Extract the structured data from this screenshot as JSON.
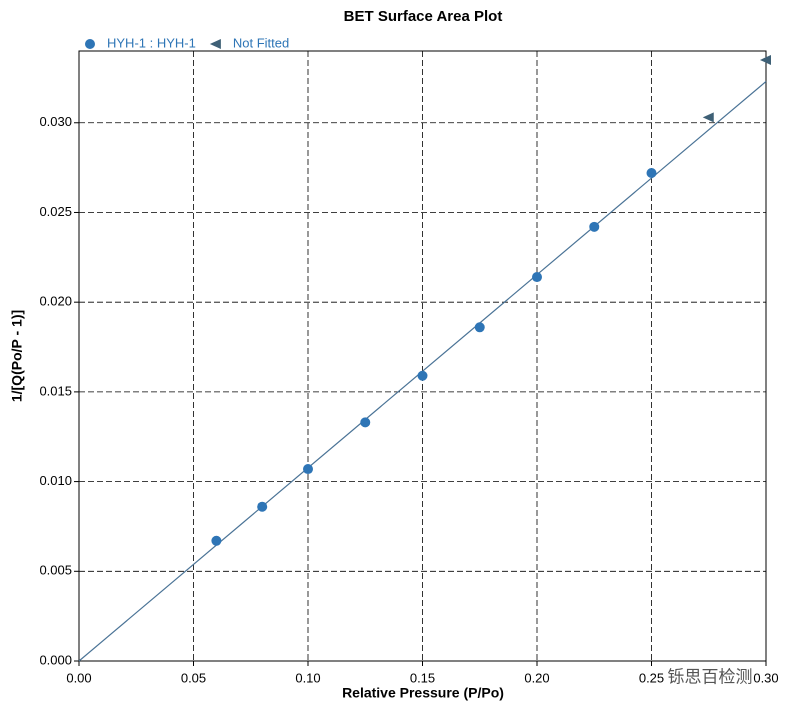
{
  "chart_data": {
    "type": "scatter",
    "title": "BET Surface Area Plot",
    "x_label": "Relative Pressure (P/Po)",
    "y_label": "1/[Q(Po/P - 1)]",
    "xlim": [
      0,
      0.3
    ],
    "ylim": [
      0,
      0.034
    ],
    "xticks": [
      {
        "value": 0,
        "label": "0.00"
      },
      {
        "value": 0.05,
        "label": "0.05"
      },
      {
        "value": 0.1,
        "label": "0.10"
      },
      {
        "value": 0.15,
        "label": "0.15"
      },
      {
        "value": 0.2,
        "label": "0.20"
      },
      {
        "value": 0.25,
        "label": "0.25"
      },
      {
        "value": 0.3,
        "label": "0.30"
      }
    ],
    "yticks": [
      {
        "value": 0,
        "label": "0.000"
      },
      {
        "value": 0.005,
        "label": "0.005"
      },
      {
        "value": 0.01,
        "label": "0.010"
      },
      {
        "value": 0.015,
        "label": "0.015"
      },
      {
        "value": 0.02,
        "label": "0.020"
      },
      {
        "value": 0.025,
        "label": "0.025"
      },
      {
        "value": 0.03,
        "label": "0.030"
      }
    ],
    "grid": true,
    "series": [
      {
        "name": "HYH-1 : HYH-1",
        "color": "#2e75b6",
        "marker": "circle",
        "x": [
          0.06,
          0.08,
          0.1,
          0.125,
          0.15,
          0.175,
          0.2,
          0.225,
          0.25
        ],
        "values": [
          0.0067,
          0.0086,
          0.0107,
          0.0133,
          0.0159,
          0.0186,
          0.0214,
          0.0242,
          0.0272
        ]
      },
      {
        "name": "Not Fitted",
        "color": "#3e6076",
        "marker": "triangle-left",
        "x": [
          0.275,
          0.3
        ],
        "values": [
          0.0303,
          0.0335
        ]
      }
    ],
    "fit_line": {
      "color": "#4a7396",
      "x": [
        0,
        0.3
      ],
      "values": [
        0,
        0.0323
      ]
    },
    "watermark": "铄思百检测"
  }
}
